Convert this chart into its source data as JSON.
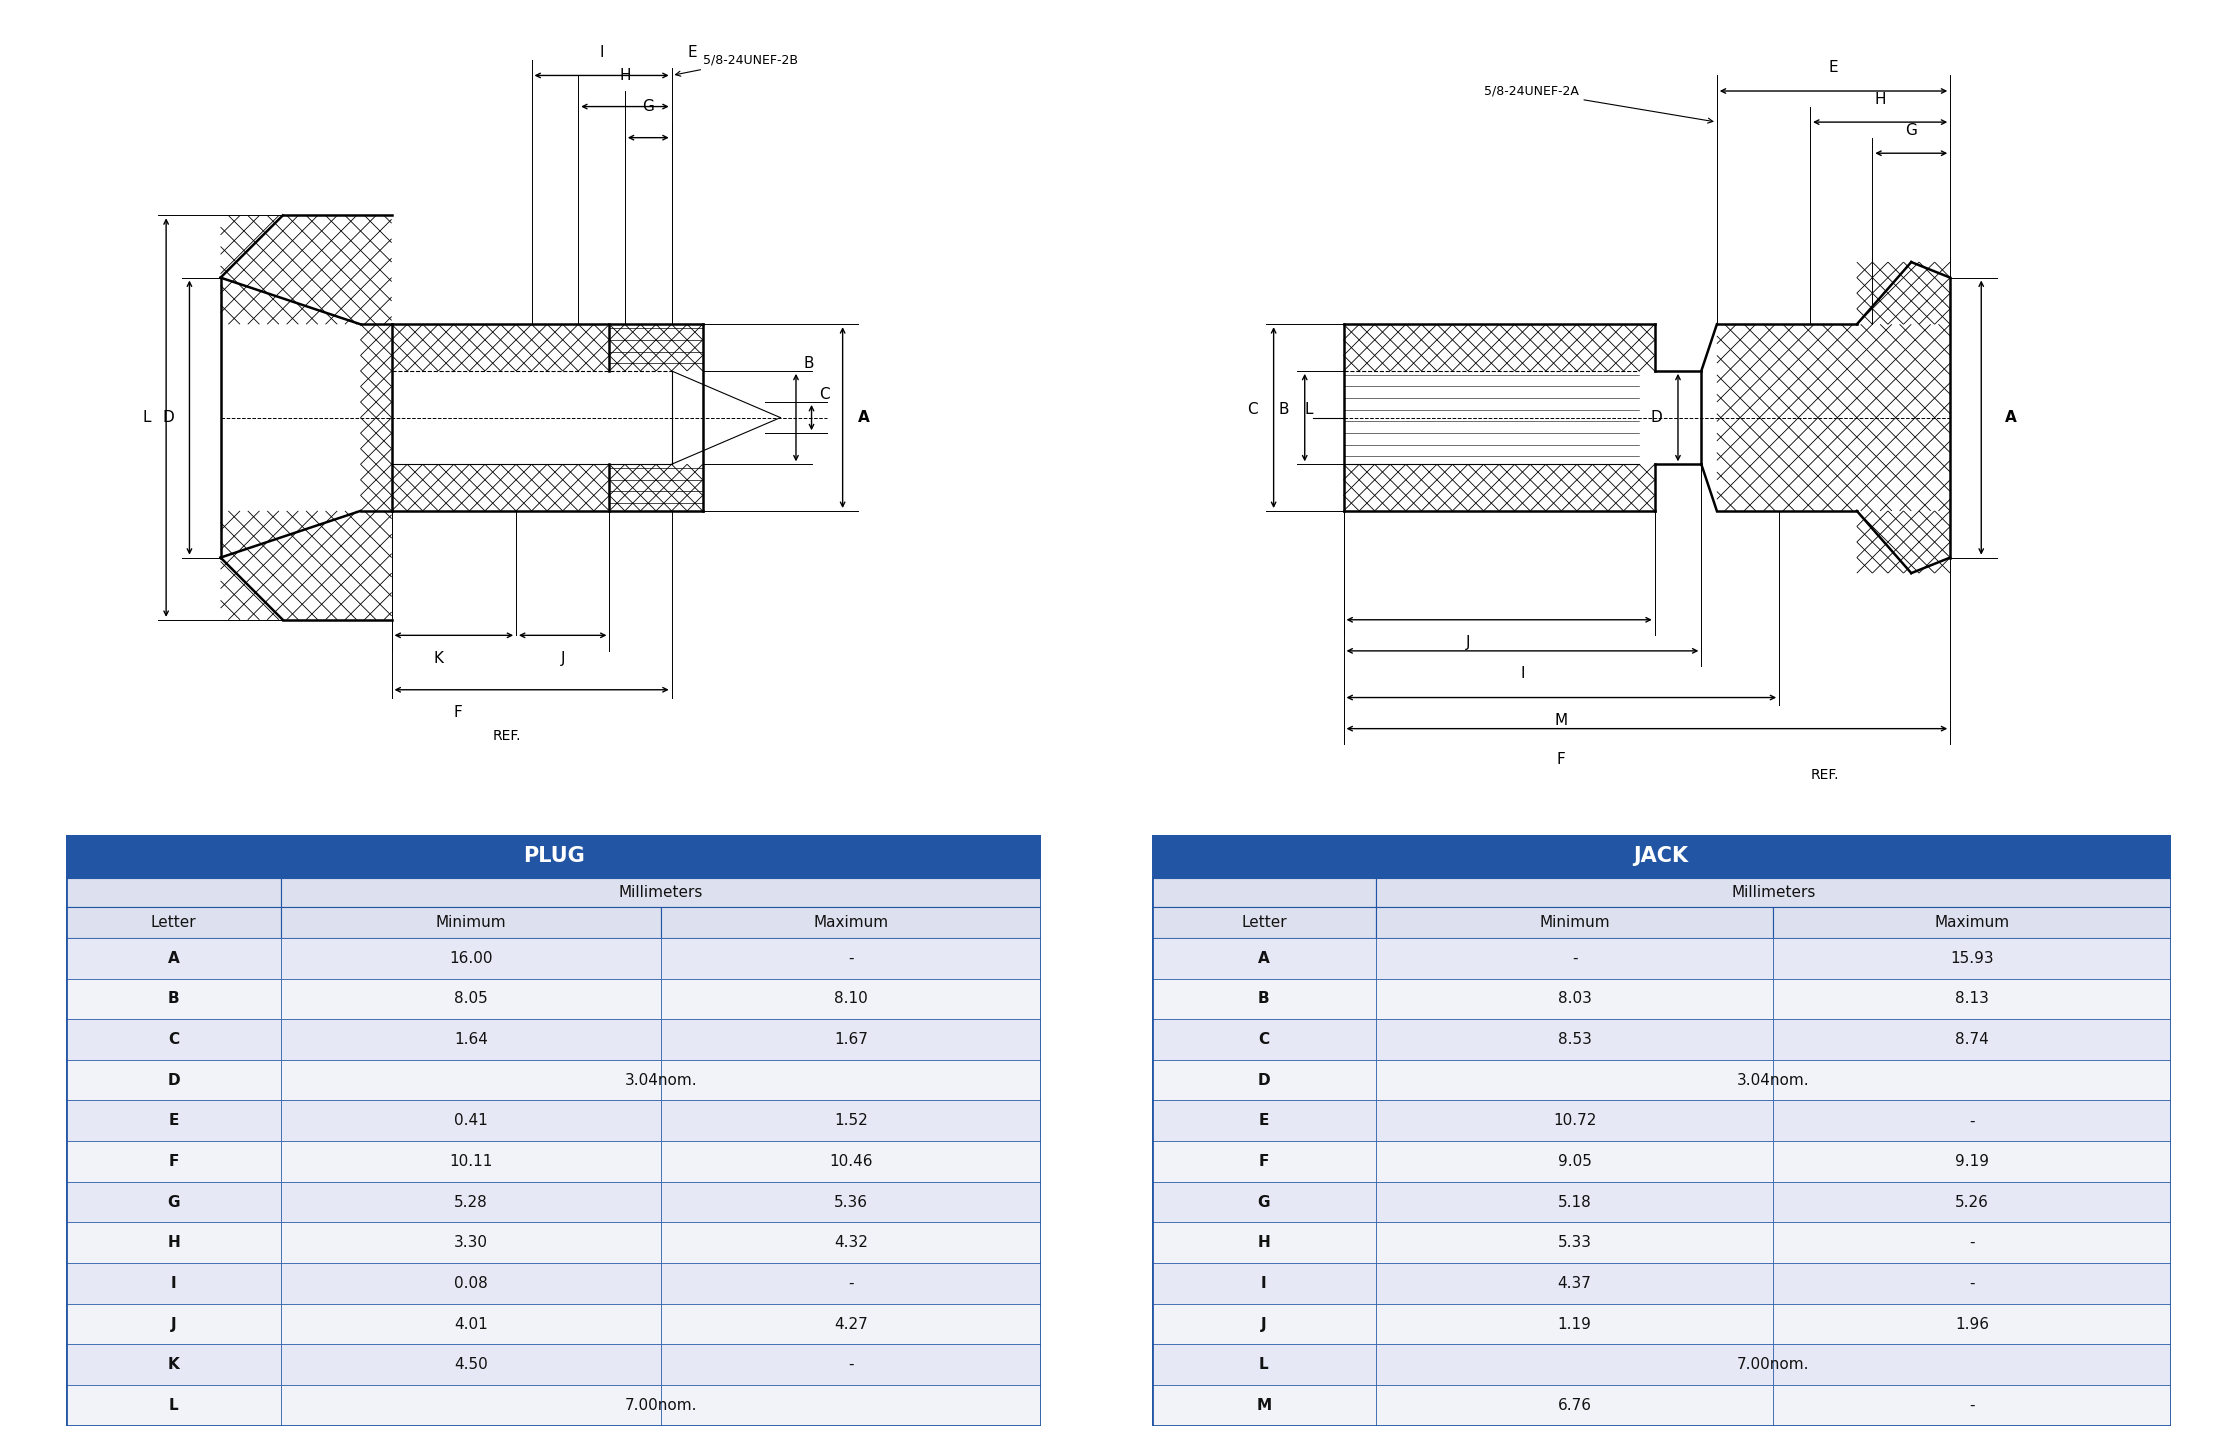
{
  "plug_title": "PLUG",
  "jack_title": "JACK",
  "plug_rows": [
    [
      "A",
      "16.00",
      "-"
    ],
    [
      "B",
      "8.05",
      "8.10"
    ],
    [
      "C",
      "1.64",
      "1.67"
    ],
    [
      "D",
      "3.04nom.",
      ""
    ],
    [
      "E",
      "0.41",
      "1.52"
    ],
    [
      "F",
      "10.11",
      "10.46"
    ],
    [
      "G",
      "5.28",
      "5.36"
    ],
    [
      "H",
      "3.30",
      "4.32"
    ],
    [
      "I",
      "0.08",
      "-"
    ],
    [
      "J",
      "4.01",
      "4.27"
    ],
    [
      "K",
      "4.50",
      "-"
    ],
    [
      "L",
      "7.00nom.",
      ""
    ]
  ],
  "jack_rows": [
    [
      "A",
      "-",
      "15.93"
    ],
    [
      "B",
      "8.03",
      "8.13"
    ],
    [
      "C",
      "8.53",
      "8.74"
    ],
    [
      "D",
      "3.04nom.",
      ""
    ],
    [
      "E",
      "10.72",
      "-"
    ],
    [
      "F",
      "9.05",
      "9.19"
    ],
    [
      "G",
      "5.18",
      "5.26"
    ],
    [
      "H",
      "5.33",
      "-"
    ],
    [
      "I",
      "4.37",
      "-"
    ],
    [
      "J",
      "1.19",
      "1.96"
    ],
    [
      "L",
      "7.00nom.",
      ""
    ],
    [
      "M",
      "6.76",
      "-"
    ]
  ],
  "header_color": "#2255a4",
  "header_text_color": "#ffffff",
  "subheader_color": "#dde0ee",
  "row_color_even": "#e6e9f5",
  "row_color_odd": "#f2f3f8",
  "border_color": "#2255a4",
  "text_color": "#111111",
  "background_color": "#ffffff"
}
